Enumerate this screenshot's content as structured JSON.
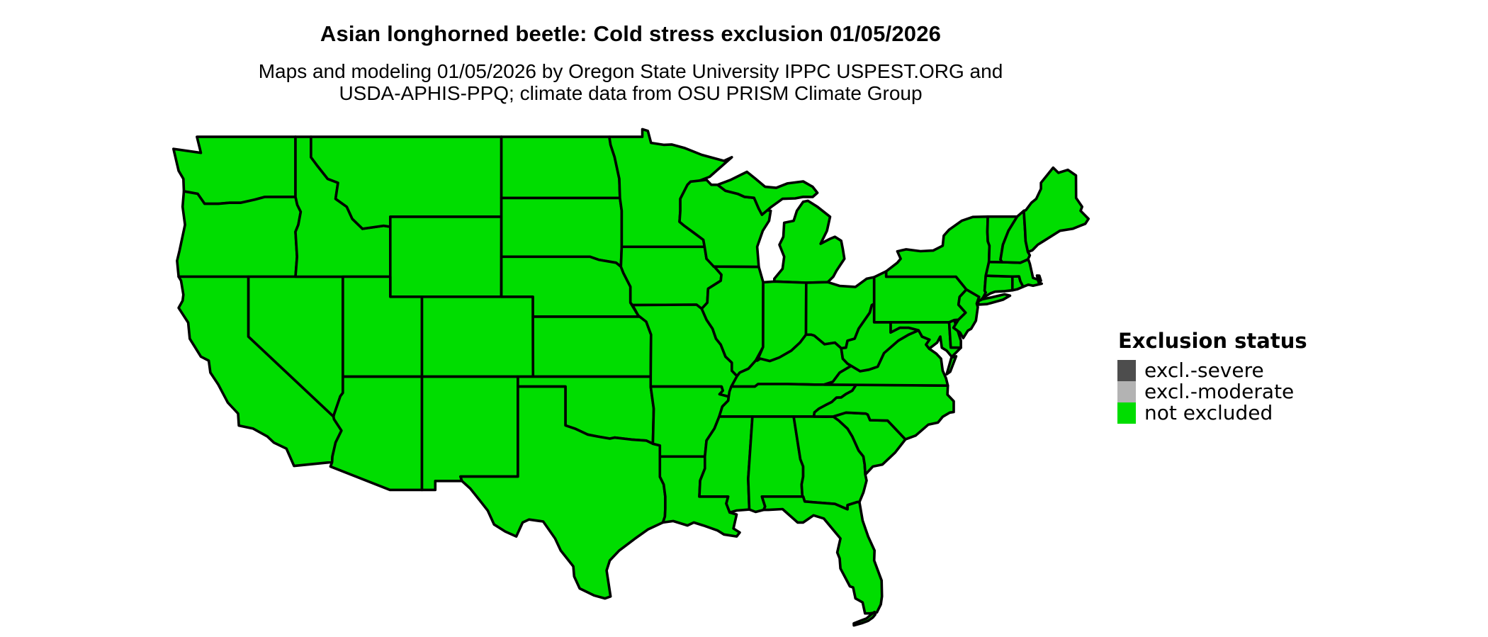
{
  "header": {
    "title": "Asian longhorned beetle: Cold stress exclusion 01/05/2026",
    "subtitle_line1": "Maps and modeling 01/05/2026 by Oregon State University IPPC USPEST.ORG and",
    "subtitle_line2": "USDA-APHIS-PPQ; climate data from OSU PRISM Climate Group"
  },
  "legend": {
    "title": "Exclusion status",
    "items": [
      {
        "label": "excl.-severe",
        "color": "#4D4D4D",
        "status": "excl.-severe"
      },
      {
        "label": "excl.-moderate",
        "color": "#B3B3B3",
        "status": "excl.-moderate"
      },
      {
        "label": "not excluded",
        "color": "#00DD00",
        "status": "not excluded"
      }
    ]
  },
  "map": {
    "background_color": "#FFFFFF",
    "border_color": "#000000",
    "status_colors": {
      "excl.-severe": "#4D4D4D",
      "excl.-moderate": "#B3B3B3",
      "not excluded": "#00DD00"
    },
    "states": [
      {
        "abbr": "WA",
        "name": "Washington",
        "status": "not excluded"
      },
      {
        "abbr": "OR",
        "name": "Oregon",
        "status": "not excluded"
      },
      {
        "abbr": "CA",
        "name": "California",
        "status": "not excluded"
      },
      {
        "abbr": "NV",
        "name": "Nevada",
        "status": "not excluded"
      },
      {
        "abbr": "ID",
        "name": "Idaho",
        "status": "not excluded"
      },
      {
        "abbr": "MT",
        "name": "Montana",
        "status": "not excluded"
      },
      {
        "abbr": "WY",
        "name": "Wyoming",
        "status": "not excluded"
      },
      {
        "abbr": "UT",
        "name": "Utah",
        "status": "not excluded"
      },
      {
        "abbr": "CO",
        "name": "Colorado",
        "status": "not excluded"
      },
      {
        "abbr": "AZ",
        "name": "Arizona",
        "status": "not excluded"
      },
      {
        "abbr": "NM",
        "name": "New Mexico",
        "status": "not excluded"
      },
      {
        "abbr": "ND",
        "name": "North Dakota",
        "status": "not excluded"
      },
      {
        "abbr": "SD",
        "name": "South Dakota",
        "status": "not excluded"
      },
      {
        "abbr": "NE",
        "name": "Nebraska",
        "status": "not excluded"
      },
      {
        "abbr": "KS",
        "name": "Kansas",
        "status": "not excluded"
      },
      {
        "abbr": "OK",
        "name": "Oklahoma",
        "status": "not excluded"
      },
      {
        "abbr": "TX",
        "name": "Texas",
        "status": "not excluded"
      },
      {
        "abbr": "MN",
        "name": "Minnesota",
        "status": "not excluded"
      },
      {
        "abbr": "IA",
        "name": "Iowa",
        "status": "not excluded"
      },
      {
        "abbr": "MO",
        "name": "Missouri",
        "status": "not excluded"
      },
      {
        "abbr": "AR",
        "name": "Arkansas",
        "status": "not excluded"
      },
      {
        "abbr": "LA",
        "name": "Louisiana",
        "status": "not excluded"
      },
      {
        "abbr": "WI",
        "name": "Wisconsin",
        "status": "not excluded"
      },
      {
        "abbr": "IL",
        "name": "Illinois",
        "status": "not excluded"
      },
      {
        "abbr": "MI",
        "name": "Michigan",
        "status": "not excluded"
      },
      {
        "abbr": "IN",
        "name": "Indiana",
        "status": "not excluded"
      },
      {
        "abbr": "OH",
        "name": "Ohio",
        "status": "not excluded"
      },
      {
        "abbr": "KY",
        "name": "Kentucky",
        "status": "not excluded"
      },
      {
        "abbr": "TN",
        "name": "Tennessee",
        "status": "not excluded"
      },
      {
        "abbr": "MS",
        "name": "Mississippi",
        "status": "not excluded"
      },
      {
        "abbr": "AL",
        "name": "Alabama",
        "status": "not excluded"
      },
      {
        "abbr": "GA",
        "name": "Georgia",
        "status": "not excluded"
      },
      {
        "abbr": "FL",
        "name": "Florida",
        "status": "not excluded"
      },
      {
        "abbr": "SC",
        "name": "South Carolina",
        "status": "not excluded"
      },
      {
        "abbr": "NC",
        "name": "North Carolina",
        "status": "not excluded"
      },
      {
        "abbr": "VA",
        "name": "Virginia",
        "status": "not excluded"
      },
      {
        "abbr": "WV",
        "name": "West Virginia",
        "status": "not excluded"
      },
      {
        "abbr": "MD",
        "name": "Maryland",
        "status": "not excluded"
      },
      {
        "abbr": "DE",
        "name": "Delaware",
        "status": "not excluded"
      },
      {
        "abbr": "PA",
        "name": "Pennsylvania",
        "status": "not excluded"
      },
      {
        "abbr": "NJ",
        "name": "New Jersey",
        "status": "not excluded"
      },
      {
        "abbr": "NY",
        "name": "New York",
        "status": "not excluded"
      },
      {
        "abbr": "CT",
        "name": "Connecticut",
        "status": "not excluded"
      },
      {
        "abbr": "RI",
        "name": "Rhode Island",
        "status": "not excluded"
      },
      {
        "abbr": "MA",
        "name": "Massachusetts",
        "status": "not excluded"
      },
      {
        "abbr": "VT",
        "name": "Vermont",
        "status": "not excluded"
      },
      {
        "abbr": "NH",
        "name": "New Hampshire",
        "status": "not excluded"
      },
      {
        "abbr": "ME",
        "name": "Maine",
        "status": "not excluded"
      }
    ]
  }
}
